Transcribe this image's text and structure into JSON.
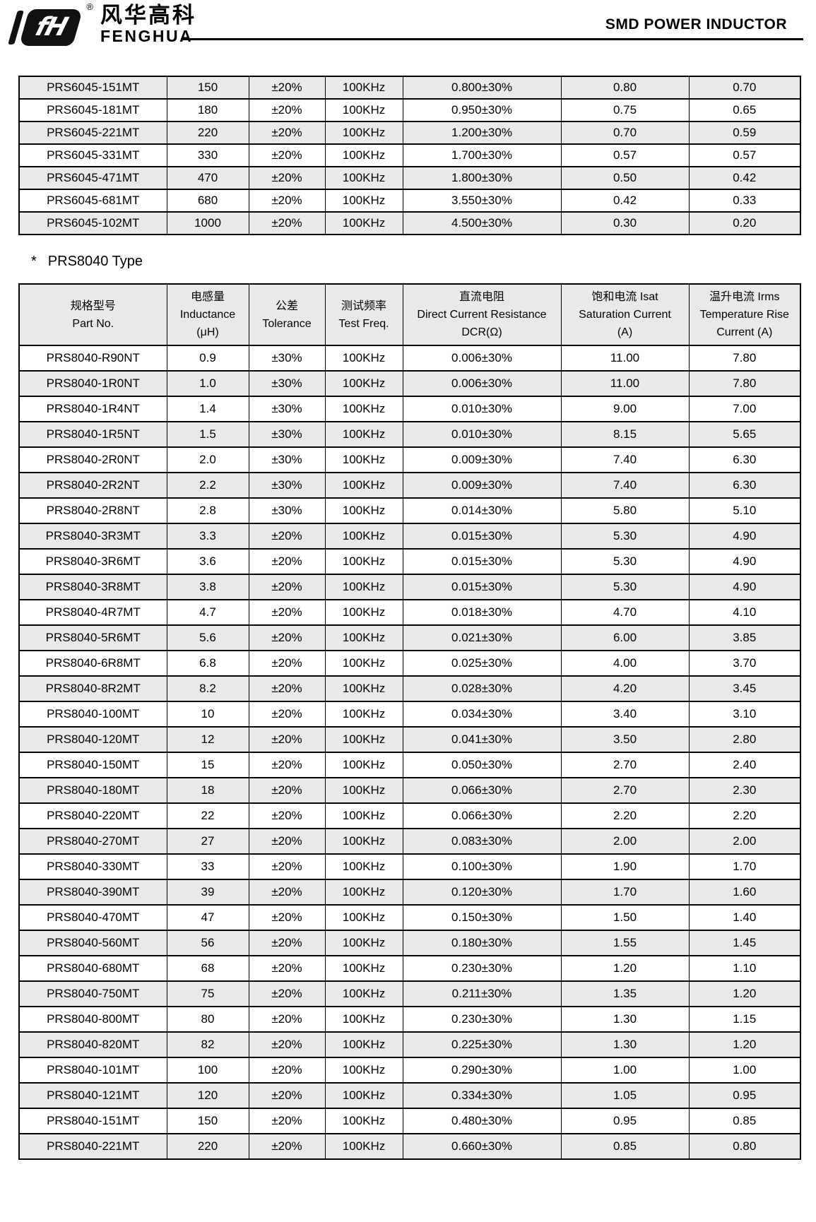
{
  "header": {
    "logo_mark": "fH",
    "registered_mark": "®",
    "logo_chinese": "风华高科",
    "logo_english": "FENGHUA",
    "title": "SMD POWER INDUCTOR"
  },
  "colors": {
    "row_shade": "#e9e9e9",
    "border": "#000000",
    "text": "#000000",
    "background": "#ffffff"
  },
  "table_prs6045": {
    "rows": [
      [
        "PRS6045-151MT",
        "150",
        "±20%",
        "100KHz",
        "0.800±30%",
        "0.80",
        "0.70"
      ],
      [
        "PRS6045-181MT",
        "180",
        "±20%",
        "100KHz",
        "0.950±30%",
        "0.75",
        "0.65"
      ],
      [
        "PRS6045-221MT",
        "220",
        "±20%",
        "100KHz",
        "1.200±30%",
        "0.70",
        "0.59"
      ],
      [
        "PRS6045-331MT",
        "330",
        "±20%",
        "100KHz",
        "1.700±30%",
        "0.57",
        "0.57"
      ],
      [
        "PRS6045-471MT",
        "470",
        "±20%",
        "100KHz",
        "1.800±30%",
        "0.50",
        "0.42"
      ],
      [
        "PRS6045-681MT",
        "680",
        "±20%",
        "100KHz",
        "3.550±30%",
        "0.42",
        "0.33"
      ],
      [
        "PRS6045-102MT",
        "1000",
        "±20%",
        "100KHz",
        "4.500±30%",
        "0.30",
        "0.20"
      ]
    ]
  },
  "section_prs8040": {
    "star": "*",
    "heading": "PRS8040 Type"
  },
  "table_prs8040": {
    "header_cols": [
      [
        "规格型号",
        "Part No."
      ],
      [
        "电感量",
        "Inductance",
        "(μH)"
      ],
      [
        "公差",
        "Tolerance"
      ],
      [
        "测试频率",
        "Test Freq."
      ],
      [
        "直流电阻",
        "Direct Current Resistance",
        "DCR(Ω)"
      ],
      [
        "饱和电流 Isat",
        "Saturation Current",
        "(A)"
      ],
      [
        "温升电流 Irms",
        "Temperature Rise",
        "Current (A)"
      ]
    ],
    "rows": [
      [
        "PRS8040-R90NT",
        "0.9",
        "±30%",
        "100KHz",
        "0.006±30%",
        "11.00",
        "7.80"
      ],
      [
        "PRS8040-1R0NT",
        "1.0",
        "±30%",
        "100KHz",
        "0.006±30%",
        "11.00",
        "7.80"
      ],
      [
        "PRS8040-1R4NT",
        "1.4",
        "±30%",
        "100KHz",
        "0.010±30%",
        "9.00",
        "7.00"
      ],
      [
        "PRS8040-1R5NT",
        "1.5",
        "±30%",
        "100KHz",
        "0.010±30%",
        "8.15",
        "5.65"
      ],
      [
        "PRS8040-2R0NT",
        "2.0",
        "±30%",
        "100KHz",
        "0.009±30%",
        "7.40",
        "6.30"
      ],
      [
        "PRS8040-2R2NT",
        "2.2",
        "±30%",
        "100KHz",
        "0.009±30%",
        "7.40",
        "6.30"
      ],
      [
        "PRS8040-2R8NT",
        "2.8",
        "±30%",
        "100KHz",
        "0.014±30%",
        "5.80",
        "5.10"
      ],
      [
        "PRS8040-3R3MT",
        "3.3",
        "±20%",
        "100KHz",
        "0.015±30%",
        "5.30",
        "4.90"
      ],
      [
        "PRS8040-3R6MT",
        "3.6",
        "±20%",
        "100KHz",
        "0.015±30%",
        "5.30",
        "4.90"
      ],
      [
        "PRS8040-3R8MT",
        "3.8",
        "±20%",
        "100KHz",
        "0.015±30%",
        "5.30",
        "4.90"
      ],
      [
        "PRS8040-4R7MT",
        "4.7",
        "±20%",
        "100KHz",
        "0.018±30%",
        "4.70",
        "4.10"
      ],
      [
        "PRS8040-5R6MT",
        "5.6",
        "±20%",
        "100KHz",
        "0.021±30%",
        "6.00",
        "3.85"
      ],
      [
        "PRS8040-6R8MT",
        "6.8",
        "±20%",
        "100KHz",
        "0.025±30%",
        "4.00",
        "3.70"
      ],
      [
        "PRS8040-8R2MT",
        "8.2",
        "±20%",
        "100KHz",
        "0.028±30%",
        "4.20",
        "3.45"
      ],
      [
        "PRS8040-100MT",
        "10",
        "±20%",
        "100KHz",
        "0.034±30%",
        "3.40",
        "3.10"
      ],
      [
        "PRS8040-120MT",
        "12",
        "±20%",
        "100KHz",
        "0.041±30%",
        "3.50",
        "2.80"
      ],
      [
        "PRS8040-150MT",
        "15",
        "±20%",
        "100KHz",
        "0.050±30%",
        "2.70",
        "2.40"
      ],
      [
        "PRS8040-180MT",
        "18",
        "±20%",
        "100KHz",
        "0.066±30%",
        "2.70",
        "2.30"
      ],
      [
        "PRS8040-220MT",
        "22",
        "±20%",
        "100KHz",
        "0.066±30%",
        "2.20",
        "2.20"
      ],
      [
        "PRS8040-270MT",
        "27",
        "±20%",
        "100KHz",
        "0.083±30%",
        "2.00",
        "2.00"
      ],
      [
        "PRS8040-330MT",
        "33",
        "±20%",
        "100KHz",
        "0.100±30%",
        "1.90",
        "1.70"
      ],
      [
        "PRS8040-390MT",
        "39",
        "±20%",
        "100KHz",
        "0.120±30%",
        "1.70",
        "1.60"
      ],
      [
        "PRS8040-470MT",
        "47",
        "±20%",
        "100KHz",
        "0.150±30%",
        "1.50",
        "1.40"
      ],
      [
        "PRS8040-560MT",
        "56",
        "±20%",
        "100KHz",
        "0.180±30%",
        "1.55",
        "1.45"
      ],
      [
        "PRS8040-680MT",
        "68",
        "±20%",
        "100KHz",
        "0.230±30%",
        "1.20",
        "1.10"
      ],
      [
        "PRS8040-750MT",
        "75",
        "±20%",
        "100KHz",
        "0.211±30%",
        "1.35",
        "1.20"
      ],
      [
        "PRS8040-800MT",
        "80",
        "±20%",
        "100KHz",
        "0.230±30%",
        "1.30",
        "1.15"
      ],
      [
        "PRS8040-820MT",
        "82",
        "±20%",
        "100KHz",
        "0.225±30%",
        "1.30",
        "1.20"
      ],
      [
        "PRS8040-101MT",
        "100",
        "±20%",
        "100KHz",
        "0.290±30%",
        "1.00",
        "1.00"
      ],
      [
        "PRS8040-121MT",
        "120",
        "±20%",
        "100KHz",
        "0.334±30%",
        "1.05",
        "0.95"
      ],
      [
        "PRS8040-151MT",
        "150",
        "±20%",
        "100KHz",
        "0.480±30%",
        "0.95",
        "0.85"
      ],
      [
        "PRS8040-221MT",
        "220",
        "±20%",
        "100KHz",
        "0.660±30%",
        "0.85",
        "0.80"
      ]
    ]
  }
}
